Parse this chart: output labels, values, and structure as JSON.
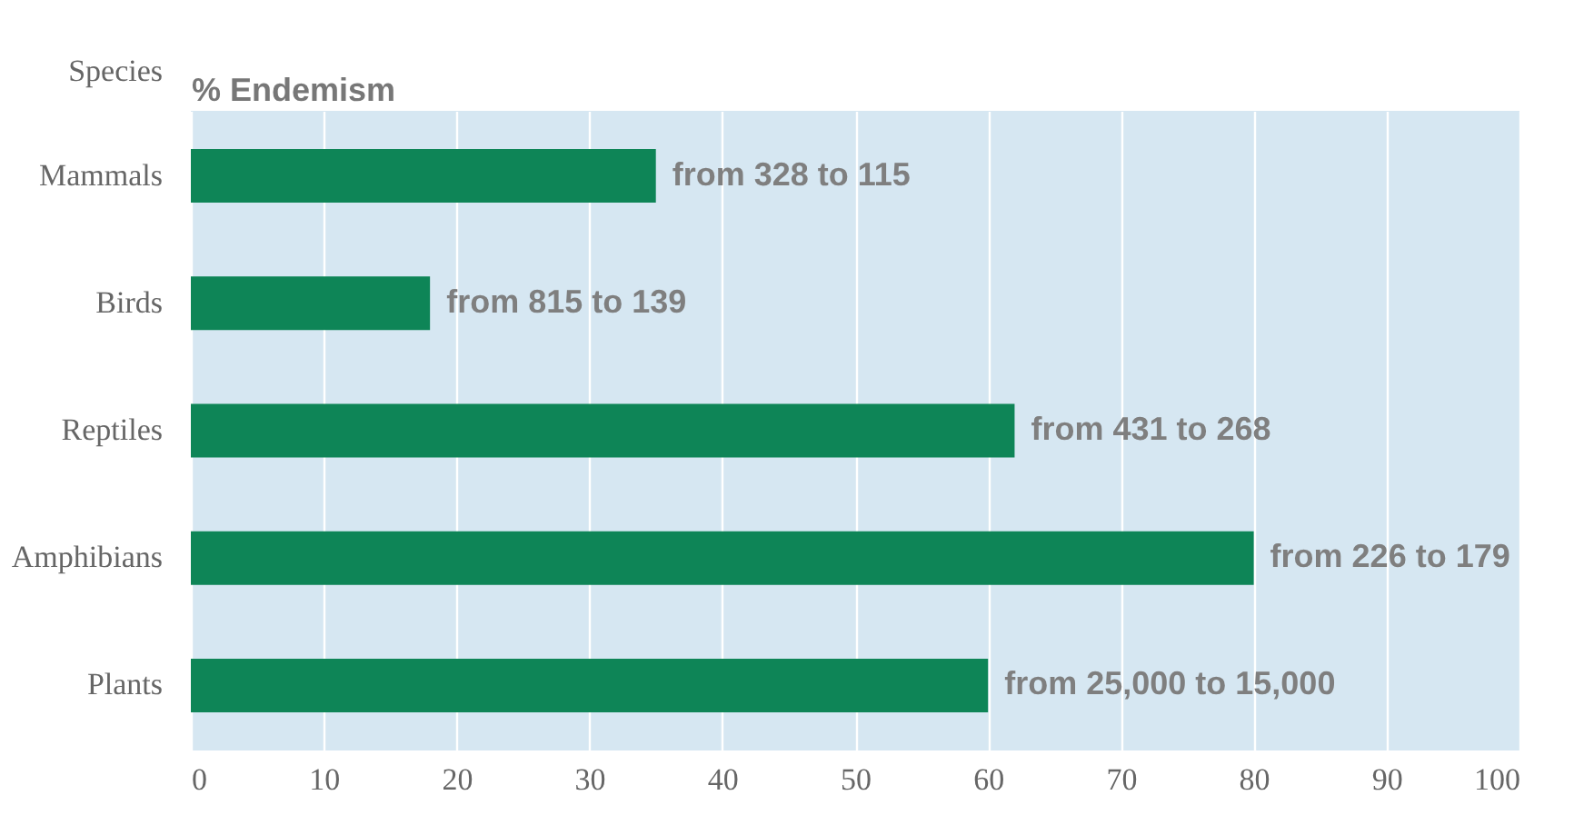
{
  "chart_data": {
    "type": "bar",
    "orientation": "horizontal",
    "xlabel": "% Endemism",
    "ylabel": "Species",
    "categories": [
      "Mammals",
      "Birds",
      "Reptiles",
      "Amphibians",
      "Plants"
    ],
    "values": [
      35,
      18,
      62,
      80,
      60
    ],
    "color": "#0e8557",
    "xlim": [
      0,
      100
    ],
    "xticks": [
      0,
      10,
      20,
      30,
      40,
      50,
      60,
      70,
      80,
      90,
      100
    ],
    "grid": "x",
    "annotations": [
      {
        "text": "from 328 to 115",
        "x": 35,
        "y": "Mammals"
      },
      {
        "text": "from 815 to 139",
        "x": 18,
        "y": "Birds"
      },
      {
        "text": "from 431 to 268",
        "x": 62,
        "y": "Reptiles"
      },
      {
        "text": "from 226 to 179",
        "x": 80,
        "y": "Amphibians"
      },
      {
        "text": "from 25,000 to 15,000",
        "x": 60,
        "y": "Plants"
      }
    ]
  }
}
